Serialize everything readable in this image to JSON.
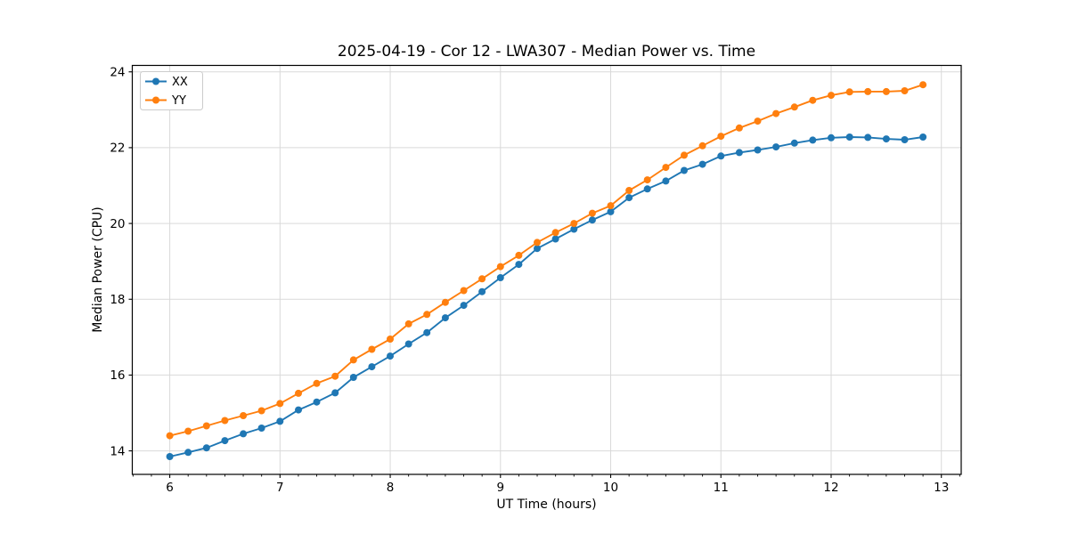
{
  "chart_data": {
    "type": "line",
    "title": "2025-04-19 - Cor 12 - LWA307 - Median Power vs. Time",
    "xlabel": "UT Time (hours)",
    "ylabel": "Median Power (CPU)",
    "xlim": [
      5.66,
      13.18
    ],
    "ylim": [
      13.38,
      24.17
    ],
    "xticks": [
      6,
      7,
      8,
      9,
      10,
      11,
      12,
      13
    ],
    "yticks": [
      14,
      16,
      18,
      20,
      22,
      24
    ],
    "x_minor_step_hours": 0.1667,
    "grid": "major-only",
    "legend": {
      "position": "upper left",
      "entries": [
        "XX",
        "YY"
      ]
    },
    "x": [
      6.0,
      6.167,
      6.333,
      6.5,
      6.667,
      6.833,
      7.0,
      7.167,
      7.333,
      7.5,
      7.667,
      7.833,
      8.0,
      8.167,
      8.333,
      8.5,
      8.667,
      8.833,
      9.0,
      9.167,
      9.333,
      9.5,
      9.667,
      9.833,
      10.0,
      10.167,
      10.333,
      10.5,
      10.667,
      10.833,
      11.0,
      11.167,
      11.333,
      11.5,
      11.667,
      11.833,
      12.0,
      12.167,
      12.333,
      12.5,
      12.667,
      12.833
    ],
    "series": [
      {
        "name": "XX",
        "color": "#1f77b4",
        "values": [
          13.85,
          13.96,
          14.08,
          14.27,
          14.45,
          14.6,
          14.78,
          15.08,
          15.29,
          15.53,
          15.94,
          16.22,
          16.5,
          16.82,
          17.12,
          17.51,
          17.84,
          18.2,
          18.57,
          18.92,
          19.34,
          19.59,
          19.85,
          20.09,
          20.31,
          20.68,
          20.91,
          21.12,
          21.4,
          21.56,
          21.78,
          21.87,
          21.94,
          22.02,
          22.12,
          22.2,
          22.26,
          22.28,
          22.27,
          22.23,
          22.21,
          22.28
        ]
      },
      {
        "name": "YY",
        "color": "#ff7f0e",
        "values": [
          14.4,
          14.52,
          14.66,
          14.8,
          14.93,
          15.06,
          15.25,
          15.52,
          15.78,
          15.97,
          16.4,
          16.68,
          16.95,
          17.35,
          17.6,
          17.92,
          18.23,
          18.54,
          18.86,
          19.16,
          19.5,
          19.76,
          20.0,
          20.27,
          20.47,
          20.87,
          21.15,
          21.48,
          21.8,
          22.05,
          22.3,
          22.52,
          22.7,
          22.9,
          23.07,
          23.25,
          23.38,
          23.47,
          23.48,
          23.48,
          23.5,
          23.66
        ]
      }
    ]
  },
  "colors": {
    "background": "#ffffff",
    "grid": "#d9d9d9",
    "spine": "#000000",
    "text": "#000000",
    "legend_border": "#cccccc",
    "legend_background": "#ffffff"
  }
}
